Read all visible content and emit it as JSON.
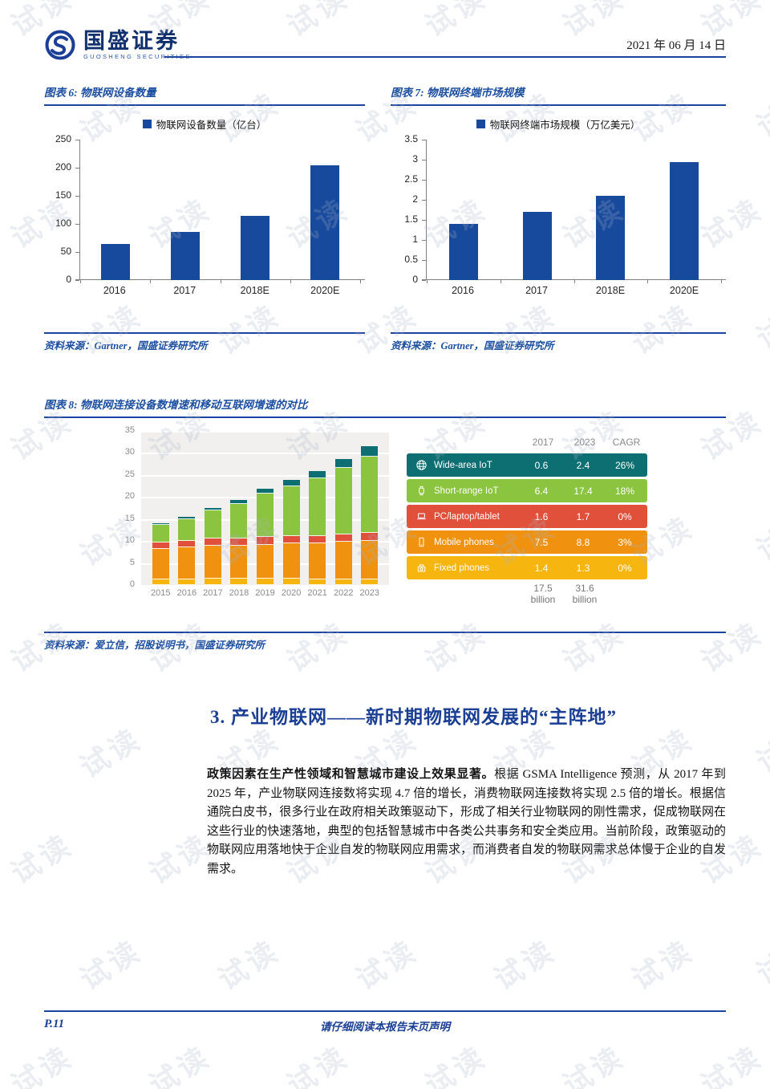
{
  "watermark": {
    "text": "试读"
  },
  "header": {
    "logo_cn": "国盛证券",
    "logo_en": "GUOSHENG SECURITIES",
    "date": "2021 年 06 月 14 日"
  },
  "figures": {
    "fig6": {
      "title": "图表 6: 物联网设备数量",
      "source": "资料来源：Gartner，国盛证券研究所"
    },
    "fig7": {
      "title": "图表 7: 物联网终端市场规模",
      "source": "资料来源：Gartner，国盛证券研究所"
    },
    "fig8": {
      "title": "图表 8: 物联网连接设备数增速和移动互联网增速的对比",
      "source": "资料来源：爱立信，招股说明书，国盛证券研究所"
    }
  },
  "chart_data": [
    {
      "id": "iot-device-count",
      "type": "bar",
      "legend": "物联网设备数量（亿台）",
      "categories": [
        "2016",
        "2017",
        "2018E",
        "2020E"
      ],
      "values": [
        65,
        86,
        114,
        205
      ],
      "ylim": [
        0,
        250
      ],
      "yticks": [
        0,
        50,
        100,
        150,
        200,
        250
      ],
      "bar_color": "#17499d",
      "grid": false,
      "legend_position": "top"
    },
    {
      "id": "iot-terminal-market",
      "type": "bar",
      "legend": "物联网终端市场规模（万亿美元）",
      "categories": [
        "2016",
        "2017",
        "2018E",
        "2020E"
      ],
      "values": [
        1.4,
        1.7,
        2.1,
        2.95
      ],
      "ylim": [
        0,
        3.5
      ],
      "yticks": [
        0,
        0.5,
        1,
        1.5,
        2,
        2.5,
        3,
        3.5
      ],
      "bar_color": "#17499d",
      "grid": false,
      "legend_position": "top"
    },
    {
      "id": "connected-devices-vs-mobile",
      "type": "bar",
      "subtype": "stacked",
      "categories": [
        "2015",
        "2016",
        "2017",
        "2018",
        "2019",
        "2020",
        "2021",
        "2022",
        "2023"
      ],
      "series": [
        {
          "name": "Fixed phones",
          "color": "#f7b60f",
          "values": [
            1.3,
            1.3,
            1.4,
            1.4,
            1.4,
            1.4,
            1.3,
            1.3,
            1.3
          ]
        },
        {
          "name": "Mobile phones",
          "color": "#f0920f",
          "values": [
            6.9,
            7.2,
            7.5,
            7.6,
            7.8,
            8.0,
            8.2,
            8.5,
            8.8
          ]
        },
        {
          "name": "PC/laptop/tablet",
          "color": "#e0503a",
          "values": [
            1.5,
            1.6,
            1.6,
            1.6,
            1.7,
            1.7,
            1.7,
            1.7,
            1.7
          ]
        },
        {
          "name": "Short-range IoT",
          "color": "#8bc43e",
          "values": [
            3.9,
            4.9,
            6.4,
            7.9,
            9.8,
            11.4,
            13.0,
            15.1,
            17.4
          ]
        },
        {
          "name": "Wide-area IoT",
          "color": "#0e6f73",
          "values": [
            0.5,
            0.5,
            0.6,
            0.8,
            1.1,
            1.4,
            1.7,
            2.1,
            2.4
          ]
        }
      ],
      "ylim": [
        0,
        35
      ],
      "yticks": [
        0,
        5,
        10,
        15,
        20,
        25,
        30,
        35
      ],
      "grid": true,
      "table": {
        "col_headers": [
          "2017",
          "2023",
          "CAGR"
        ],
        "rows": [
          {
            "icon": "globe",
            "label": "Wide-area IoT",
            "y2017": "0.6",
            "y2023": "2.4",
            "cagr": "26%",
            "color": "#0e6f73"
          },
          {
            "icon": "watch",
            "label": "Short-range IoT",
            "y2017": "6.4",
            "y2023": "17.4",
            "cagr": "18%",
            "color": "#8bc43e"
          },
          {
            "icon": "laptop",
            "label": "PC/laptop/tablet",
            "y2017": "1.6",
            "y2023": "1.7",
            "cagr": "0%",
            "color": "#e0503a"
          },
          {
            "icon": "smartphone",
            "label": "Mobile phones",
            "y2017": "7.5",
            "y2023": "8.8",
            "cagr": "3%",
            "color": "#f0920f"
          },
          {
            "icon": "fixed-phone",
            "label": "Fixed phones",
            "y2017": "1.4",
            "y2023": "1.3",
            "cagr": "0%",
            "color": "#f7b60f"
          }
        ],
        "totals": [
          {
            "value": "17.5",
            "unit": "billion"
          },
          {
            "value": "31.6",
            "unit": "billion"
          }
        ]
      }
    }
  ],
  "heading": {
    "text": "3. 产业物联网——新时期物联网发展的“主阵地”"
  },
  "body": {
    "lead": "政策因素在生产性领域和智慧城市建设上效果显著。",
    "text": "根据 GSMA Intelligence 预测，从 2017 年到 2025 年，产业物联网连接数将实现 4.7 倍的增长，消费物联网连接数将实现 2.5 倍的增长。根据信通院白皮书，很多行业在政府相关政策驱动下，形成了相关行业物联网的刚性需求，促成物联网在这些行业的快速落地，典型的包括智慧城市中各类公共事务和安全类应用。当前阶段，政策驱动的物联网应用落地快于企业自发的物联网应用需求，而消费者自发的物联网需求总体慢于企业的自发需求。"
  },
  "footer": {
    "page_label": "P.11",
    "disclaimer": "请仔细阅读本报告末页声明"
  }
}
